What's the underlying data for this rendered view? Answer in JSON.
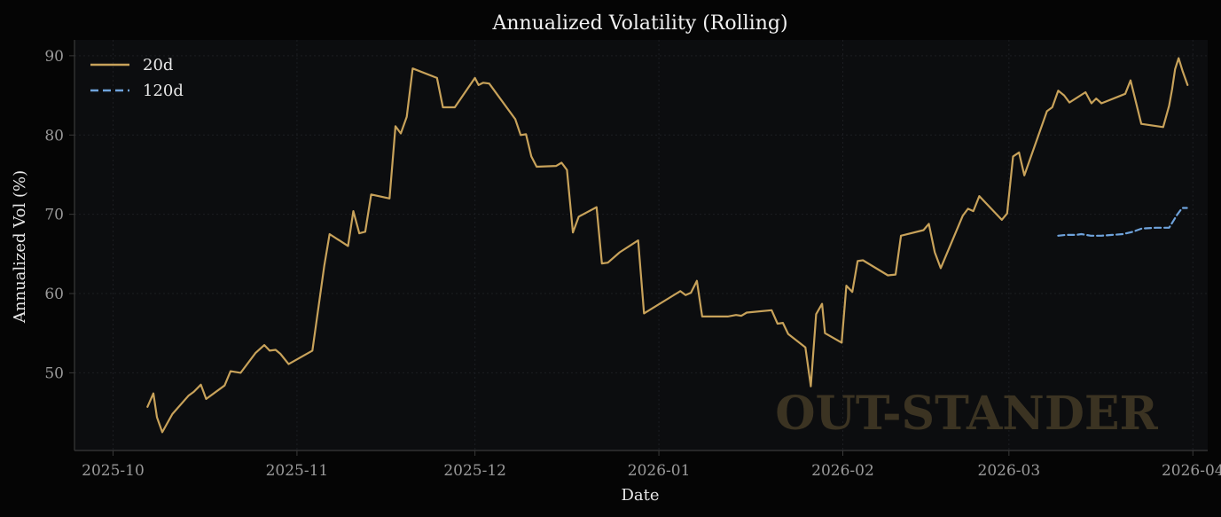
{
  "colors": {
    "figure_bg": "#050505",
    "axes_bg": "#0c0d0f",
    "grid": "#1c1e22",
    "spine": "#3a3a3a",
    "series_20d": "#c8a25a",
    "series_120d": "#6fa3dc",
    "watermark": "#3b3322"
  },
  "chart_data": {
    "type": "line",
    "title": "Annualized Volatility (Rolling)",
    "xlabel": "Date",
    "ylabel": "Annualized Vol (%)",
    "x_range_days": [
      -6.5,
      184.5
    ],
    "x_origin": "2025-10-01",
    "ylim": [
      40.2,
      92.0
    ],
    "y_ticks": [
      50,
      60,
      70,
      80,
      90
    ],
    "x_ticks": [
      {
        "day": 0,
        "label": "2025-10"
      },
      {
        "day": 31,
        "label": "2025-11"
      },
      {
        "day": 61,
        "label": "2025-12"
      },
      {
        "day": 92,
        "label": "2026-01"
      },
      {
        "day": 123,
        "label": "2026-02"
      },
      {
        "day": 151,
        "label": "2026-03"
      },
      {
        "day": 182,
        "label": "2026-04"
      }
    ],
    "grid": true,
    "legend_position": "top-left",
    "series": [
      {
        "name": "20d",
        "style": "solid",
        "points": [
          [
            5.8,
            45.7
          ],
          [
            6.8,
            47.4
          ],
          [
            7.4,
            44.4
          ],
          [
            8.3,
            42.5
          ],
          [
            10.0,
            44.8
          ],
          [
            12.7,
            47.1
          ],
          [
            13.6,
            47.6
          ],
          [
            14.8,
            48.5
          ],
          [
            15.7,
            46.7
          ],
          [
            18.8,
            48.4
          ],
          [
            19.8,
            50.2
          ],
          [
            21.5,
            50.0
          ],
          [
            24.0,
            52.5
          ],
          [
            25.5,
            53.5
          ],
          [
            26.4,
            52.8
          ],
          [
            27.4,
            52.9
          ],
          [
            28.2,
            52.4
          ],
          [
            29.6,
            51.1
          ],
          [
            33.6,
            52.8
          ],
          [
            34.7,
            58.7
          ],
          [
            35.6,
            63.5
          ],
          [
            36.5,
            67.5
          ],
          [
            39.6,
            66.0
          ],
          [
            40.5,
            70.4
          ],
          [
            41.5,
            67.6
          ],
          [
            42.5,
            67.8
          ],
          [
            43.5,
            72.5
          ],
          [
            46.6,
            72.0
          ],
          [
            47.6,
            81.1
          ],
          [
            48.5,
            80.2
          ],
          [
            49.5,
            82.3
          ],
          [
            50.5,
            88.4
          ],
          [
            54.6,
            87.2
          ],
          [
            55.6,
            83.5
          ],
          [
            57.6,
            83.5
          ],
          [
            61.0,
            87.2
          ],
          [
            61.6,
            86.3
          ],
          [
            62.4,
            86.6
          ],
          [
            63.4,
            86.5
          ],
          [
            67.8,
            82.0
          ],
          [
            68.7,
            80.0
          ],
          [
            69.6,
            80.1
          ],
          [
            70.5,
            77.3
          ],
          [
            71.4,
            76.0
          ],
          [
            74.7,
            76.1
          ],
          [
            75.6,
            76.5
          ],
          [
            76.5,
            75.6
          ],
          [
            77.5,
            67.7
          ],
          [
            78.5,
            69.7
          ],
          [
            81.5,
            70.9
          ],
          [
            82.4,
            63.8
          ],
          [
            83.4,
            63.9
          ],
          [
            85.4,
            65.2
          ],
          [
            88.5,
            66.7
          ],
          [
            89.5,
            57.5
          ],
          [
            95.6,
            60.3
          ],
          [
            96.5,
            59.8
          ],
          [
            97.4,
            60.1
          ],
          [
            98.4,
            61.6
          ],
          [
            99.3,
            57.1
          ],
          [
            103.6,
            57.1
          ],
          [
            105.0,
            57.3
          ],
          [
            105.9,
            57.2
          ],
          [
            106.8,
            57.6
          ],
          [
            111.0,
            57.9
          ],
          [
            112.0,
            56.2
          ],
          [
            112.9,
            56.3
          ],
          [
            113.8,
            54.9
          ],
          [
            116.7,
            53.2
          ],
          [
            117.6,
            48.3
          ],
          [
            118.5,
            57.4
          ],
          [
            119.5,
            58.7
          ],
          [
            120.0,
            55.0
          ],
          [
            122.8,
            53.8
          ],
          [
            123.6,
            61.0
          ],
          [
            124.6,
            60.2
          ],
          [
            125.5,
            64.1
          ],
          [
            126.4,
            64.2
          ],
          [
            130.6,
            62.3
          ],
          [
            131.9,
            62.4
          ],
          [
            132.8,
            67.3
          ],
          [
            136.6,
            68.0
          ],
          [
            137.5,
            68.8
          ],
          [
            138.5,
            65.2
          ],
          [
            139.5,
            63.2
          ],
          [
            143.2,
            69.8
          ],
          [
            144.1,
            70.7
          ],
          [
            145.0,
            70.4
          ],
          [
            146.0,
            72.3
          ],
          [
            149.8,
            69.3
          ],
          [
            150.7,
            70.1
          ],
          [
            151.7,
            77.3
          ],
          [
            152.7,
            77.8
          ],
          [
            153.6,
            74.9
          ],
          [
            157.4,
            83.0
          ],
          [
            158.3,
            83.5
          ],
          [
            159.3,
            85.6
          ],
          [
            160.3,
            85.0
          ],
          [
            161.2,
            84.1
          ],
          [
            163.9,
            85.4
          ],
          [
            164.9,
            84.0
          ],
          [
            165.7,
            84.6
          ],
          [
            166.6,
            84.0
          ],
          [
            170.6,
            85.2
          ],
          [
            171.5,
            86.9
          ],
          [
            173.3,
            81.4
          ],
          [
            177.0,
            81.0
          ],
          [
            178.0,
            83.7
          ],
          [
            178.5,
            85.8
          ],
          [
            179.0,
            88.3
          ],
          [
            179.6,
            89.7
          ],
          [
            180.3,
            88.0
          ],
          [
            181.1,
            86.3
          ]
        ]
      },
      {
        "name": "120d",
        "style": "dashed",
        "points": [
          [
            159.3,
            67.3
          ],
          [
            160.6,
            67.4
          ],
          [
            162.3,
            67.4
          ],
          [
            163.2,
            67.5
          ],
          [
            164.8,
            67.3
          ],
          [
            166.6,
            67.3
          ],
          [
            168.4,
            67.4
          ],
          [
            170.2,
            67.5
          ],
          [
            171.9,
            67.8
          ],
          [
            173.4,
            68.2
          ],
          [
            175.8,
            68.3
          ],
          [
            178.0,
            68.3
          ],
          [
            179.4,
            70.0
          ],
          [
            180.2,
            70.8
          ],
          [
            181.0,
            70.8
          ]
        ]
      }
    ]
  },
  "legend": {
    "items": [
      {
        "label": "20d",
        "color": "#c8a25a"
      },
      {
        "label": "120d",
        "color": "#6fa3dc"
      }
    ]
  },
  "watermark_text": "OUT-STANDER"
}
